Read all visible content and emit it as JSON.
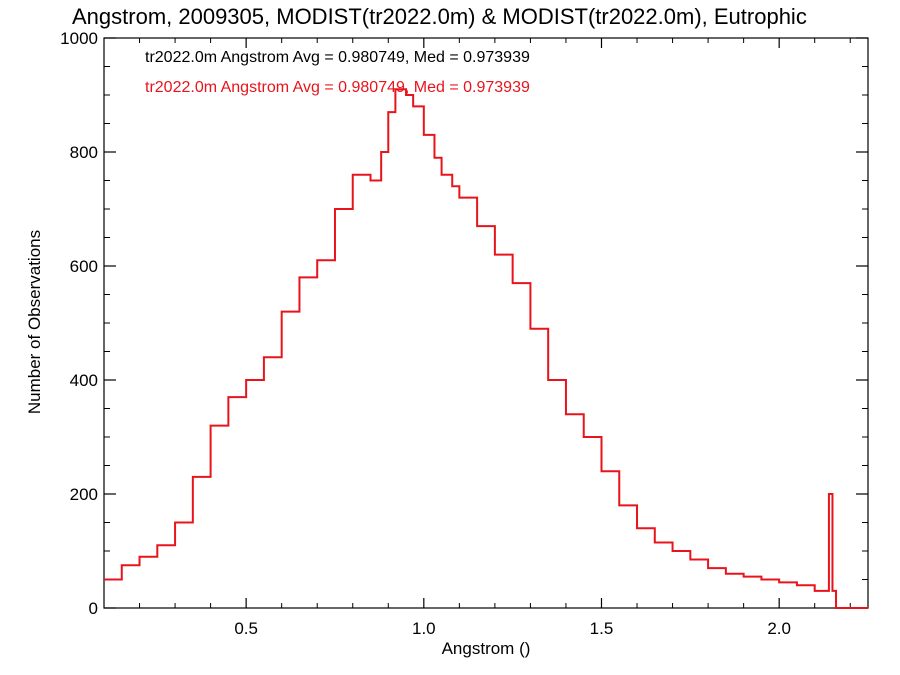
{
  "chart_data": {
    "type": "line",
    "title": "Angstrom, 2009305, MODIST(tr2022.0m) & MODIST(tr2022.0m), Eutrophic",
    "xlabel": "Angstrom ()",
    "ylabel": "Number of Observations",
    "xlim": [
      0.1,
      2.25
    ],
    "ylim": [
      0,
      1000
    ],
    "xticks": [
      0.5,
      1.0,
      1.5,
      2.0
    ],
    "xtick_labels": [
      "0.5",
      "1.0",
      "1.5",
      "2.0"
    ],
    "yticks": [
      0,
      200,
      400,
      600,
      800,
      1000
    ],
    "ytick_labels": [
      "0",
      "200",
      "400",
      "600",
      "800",
      "1000"
    ],
    "legend": [
      {
        "text": "tr2022.0m Angstrom Avg = 0.980749, Med = 0.973939",
        "color": "#000000"
      },
      {
        "text": "tr2022.0m Angstrom Avg = 0.980749, Med = 0.973939",
        "color": "#e8141b"
      }
    ],
    "series": [
      {
        "color": "#e8141b",
        "style": "step",
        "x": [
          0.1,
          0.15,
          0.2,
          0.25,
          0.3,
          0.35,
          0.4,
          0.45,
          0.5,
          0.55,
          0.6,
          0.65,
          0.7,
          0.75,
          0.8,
          0.85,
          0.88,
          0.9,
          0.92,
          0.95,
          0.97,
          1.0,
          1.03,
          1.05,
          1.08,
          1.1,
          1.15,
          1.2,
          1.25,
          1.3,
          1.35,
          1.4,
          1.45,
          1.5,
          1.55,
          1.6,
          1.65,
          1.7,
          1.75,
          1.8,
          1.85,
          1.9,
          1.95,
          2.0,
          2.05,
          2.1,
          2.13,
          2.14,
          2.15,
          2.16,
          2.17,
          2.2,
          2.25
        ],
        "y": [
          50,
          75,
          90,
          110,
          150,
          230,
          320,
          370,
          400,
          440,
          520,
          580,
          610,
          700,
          760,
          750,
          800,
          870,
          910,
          900,
          880,
          830,
          790,
          760,
          740,
          720,
          670,
          620,
          570,
          490,
          400,
          340,
          300,
          240,
          180,
          140,
          115,
          100,
          85,
          70,
          60,
          55,
          50,
          45,
          40,
          30,
          30,
          200,
          30,
          0,
          0,
          0,
          0
        ]
      }
    ]
  }
}
